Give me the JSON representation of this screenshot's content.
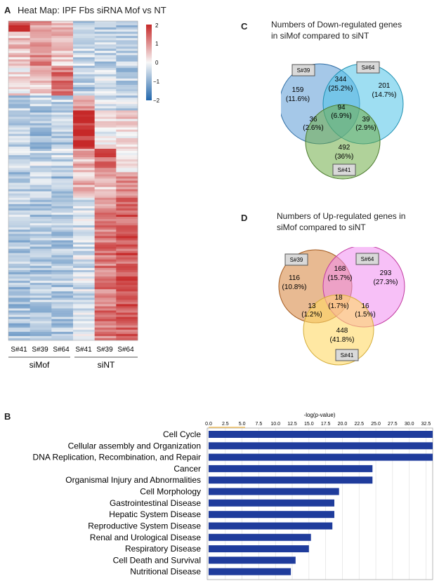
{
  "panel_a": {
    "letter": "A",
    "title": "Heat Map: IPF Fbs siRNA Mof vs NT",
    "sample_labels": [
      "S#41",
      "S#39",
      "S#64",
      "S#41",
      "S#39",
      "S#64"
    ],
    "group_labels": [
      "siMof",
      "siNT"
    ],
    "scale_ticks": [
      "2",
      "1",
      "0",
      "−1",
      "−2"
    ],
    "colors": {
      "high": "#c62828",
      "mid": "#f7f7f7",
      "low": "#2166ac"
    }
  },
  "chart_data": [
    {
      "type": "venn",
      "letter": "C",
      "title_lines": [
        "Numbers of Down-regulated genes",
        "in siMof compared to siNT"
      ],
      "sets": [
        "S#39",
        "S#64",
        "S#41"
      ],
      "regions": [
        {
          "sets": [
            "S#39"
          ],
          "count": "159",
          "pct": "(11.6%)"
        },
        {
          "sets": [
            "S#39",
            "S#64"
          ],
          "count": "344",
          "pct": "(25.2%)"
        },
        {
          "sets": [
            "S#64"
          ],
          "count": "201",
          "pct": "(14.7%)"
        },
        {
          "sets": [
            "S#39",
            "S#64",
            "S#41"
          ],
          "count": "94",
          "pct": "(6.9%)"
        },
        {
          "sets": [
            "S#39",
            "S#41"
          ],
          "count": "36",
          "pct": "(2.6%)"
        },
        {
          "sets": [
            "S#64",
            "S#41"
          ],
          "count": "39",
          "pct": "(2.9%)"
        },
        {
          "sets": [
            "S#41"
          ],
          "count": "492",
          "pct": "(36%)"
        }
      ],
      "colors": [
        "#5b9bd5",
        "#4fc3e8",
        "#70ad47"
      ]
    },
    {
      "type": "venn",
      "letter": "D",
      "title_lines": [
        "Numbers of Up-regulated genes in",
        "siMof compared to siNT"
      ],
      "sets": [
        "S#39",
        "S#64",
        "S#41"
      ],
      "regions": [
        {
          "sets": [
            "S#39"
          ],
          "count": "116",
          "pct": "(10.8%)"
        },
        {
          "sets": [
            "S#39",
            "S#64"
          ],
          "count": "168",
          "pct": "(15.7%)"
        },
        {
          "sets": [
            "S#64"
          ],
          "count": "293",
          "pct": "(27.3%)"
        },
        {
          "sets": [
            "S#39",
            "S#64",
            "S#41"
          ],
          "count": "18",
          "pct": "(1.7%)"
        },
        {
          "sets": [
            "S#39",
            "S#41"
          ],
          "count": "13",
          "pct": "(1.2%)"
        },
        {
          "sets": [
            "S#64",
            "S#41"
          ],
          "count": "16",
          "pct": "(1.5%)"
        },
        {
          "sets": [
            "S#41"
          ],
          "count": "448",
          "pct": "(41.8%)"
        }
      ],
      "colors": [
        "#d98c4a",
        "#f08cf0",
        "#ffd966"
      ]
    },
    {
      "type": "bar",
      "orientation": "horizontal",
      "letter": "B",
      "xlabel": "-log(p-value)",
      "xlim": [
        0,
        33.5
      ],
      "xticks": [
        "0.0",
        "2.5",
        "5.0",
        "7.5",
        "10.0",
        "12.5",
        "15.0",
        "17.5",
        "20.0",
        "22.5",
        "25.0",
        "27.5",
        "30.0",
        "32.5"
      ],
      "categories": [
        "Cell Cycle",
        "Cellular assembly and Organization",
        "DNA Replication, Recombination, and Repair",
        "Cancer",
        "Organismal Injury and Abnormalities",
        "Cell Morphology",
        "Gastrointestinal Disease",
        "Hepatic System Disease",
        "Reproductive System Disease",
        "Renal and Urological Disease",
        "Respiratory Disease",
        "Cell Death and Survival",
        "Nutritional Disease"
      ],
      "values": [
        33.5,
        33.5,
        33.5,
        24.5,
        24.5,
        19.5,
        18.8,
        18.8,
        18.5,
        15.3,
        15.0,
        13.0,
        12.3
      ],
      "bar_color": "#1f3c9c"
    }
  ]
}
